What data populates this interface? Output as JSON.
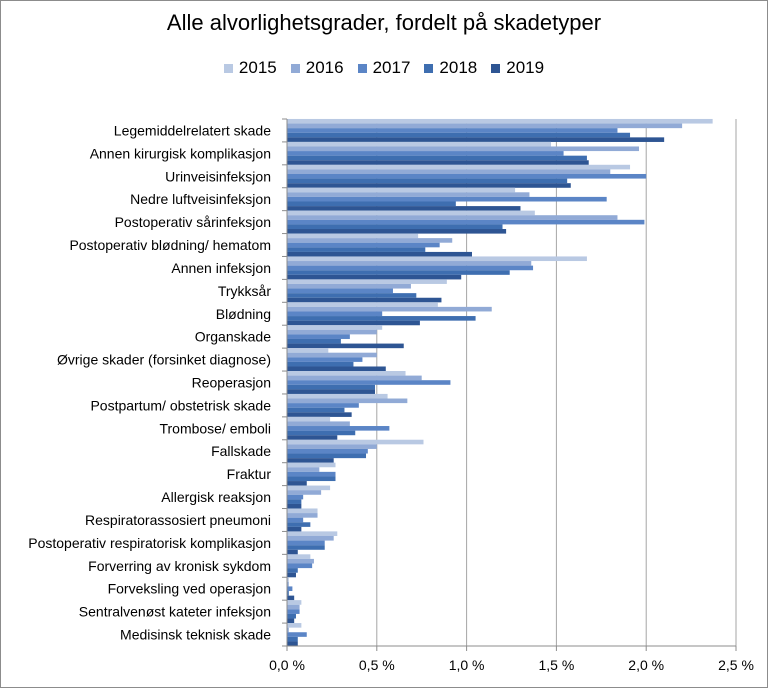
{
  "chart_data": {
    "type": "bar",
    "orientation": "horizontal",
    "title": "Alle alvorlighetsgrader, fordelt på skadetyper",
    "xlabel": "",
    "ylabel": "",
    "xlim": [
      0,
      2.5
    ],
    "x_ticks": [
      "0,0 %",
      "0,5 %",
      "1,0 %",
      "1,5 %",
      "2,0 %",
      "2,5 %"
    ],
    "grid": true,
    "legend_position": "top",
    "categories": [
      "Legemiddelrelatert skade",
      "Annen kirurgisk komplikasjon",
      "Urinveisinfeksjon",
      "Nedre luftveisinfeksjon",
      "Postoperativ sårinfeksjon",
      "Postoperativ blødning/ hematom",
      "Annen infeksjon",
      "Trykksår",
      "Blødning",
      "Organskade",
      "Øvrige skader (forsinket diagnose)",
      "Reoperasjon",
      "Postpartum/ obstetrisk skade",
      "Trombose/ emboli",
      "Fallskade",
      "Fraktur",
      "Allergisk reaksjon",
      "Respiratorassosiert pneumoni",
      "Postoperativ respiratorisk komplikasjon",
      "Forverring av kronisk sykdom",
      "Forveksling ved operasjon",
      "Sentralvenøst kateter infeksjon",
      "Medisinsk teknisk skade"
    ],
    "series": [
      {
        "name": "2015",
        "color": "#b9c9e3",
        "values": [
          2.37,
          1.47,
          1.91,
          1.27,
          1.38,
          0.73,
          1.67,
          0.89,
          0.84,
          0.53,
          0.23,
          0.66,
          0.56,
          0.24,
          0.76,
          0.27,
          0.24,
          0.17,
          0.28,
          0.13,
          0.01,
          0.08,
          0.08
        ]
      },
      {
        "name": "2016",
        "color": "#91aad6",
        "values": [
          2.2,
          1.96,
          1.8,
          1.35,
          1.84,
          0.92,
          1.36,
          0.69,
          1.14,
          0.5,
          0.5,
          0.75,
          0.67,
          0.35,
          0.5,
          0.18,
          0.19,
          0.17,
          0.26,
          0.15,
          0.01,
          0.07,
          0.01
        ]
      },
      {
        "name": "2017",
        "color": "#5b85c6",
        "values": [
          1.84,
          1.54,
          2.0,
          1.78,
          1.99,
          0.85,
          1.37,
          0.59,
          0.53,
          0.35,
          0.42,
          0.91,
          0.4,
          0.57,
          0.45,
          0.27,
          0.09,
          0.09,
          0.21,
          0.14,
          0.03,
          0.07,
          0.11
        ]
      },
      {
        "name": "2018",
        "color": "#3e6eb0",
        "values": [
          1.91,
          1.67,
          1.56,
          0.94,
          1.2,
          0.77,
          1.24,
          0.72,
          1.05,
          0.3,
          0.37,
          0.49,
          0.32,
          0.38,
          0.44,
          0.27,
          0.08,
          0.13,
          0.21,
          0.06,
          0.01,
          0.05,
          0.06
        ]
      },
      {
        "name": "2019",
        "color": "#2e5593",
        "values": [
          2.1,
          1.68,
          1.58,
          1.3,
          1.22,
          1.03,
          0.97,
          0.86,
          0.74,
          0.65,
          0.55,
          0.49,
          0.36,
          0.28,
          0.26,
          0.11,
          0.08,
          0.08,
          0.06,
          0.05,
          0.04,
          0.04,
          0.06
        ]
      }
    ]
  }
}
